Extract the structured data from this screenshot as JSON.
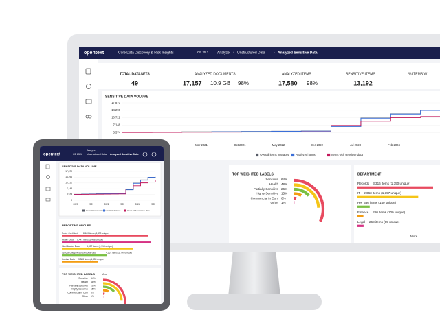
{
  "header": {
    "brand": "opentext",
    "product": "Core Data Discovery & Risk Insights",
    "version": "CE 25.1",
    "breadcrumb": [
      "Analyze",
      "Unstructured Data",
      "Analyzed Sensitive Data"
    ]
  },
  "stats": [
    {
      "label": "TOTAL DATASETS",
      "value": "49"
    },
    {
      "label": "ANALYZED DOCUMENTS",
      "value": "17,157",
      "extra": [
        "10.9 GB",
        "98%"
      ]
    },
    {
      "label": "ANALYZED ITEMS",
      "value": "17,580",
      "extra": [
        "98%"
      ]
    },
    {
      "label": "SENSITIVE ITEMS",
      "value": "13,192"
    },
    {
      "label": "% ITEMS W"
    }
  ],
  "volume_chart": {
    "type": "line",
    "title": "SENSITIVE DATA VOLUME",
    "ylim": [
      2000,
      17870
    ],
    "yticks": [
      {
        "value": 17870,
        "label": "17,870"
      },
      {
        "value": 14296,
        "label": "14,296"
      },
      {
        "value": 10722,
        "label": "10,722"
      },
      {
        "value": 7148,
        "label": "7,148"
      },
      {
        "value": 3574,
        "label": "3,574"
      }
    ],
    "xticks": [
      "Mar 2021",
      "Oct 2021",
      "May 2022",
      "Dec 2022",
      "Jul 2023",
      "Feb 2024"
    ],
    "series": [
      {
        "name": "Overall items managed",
        "color": "#555a66",
        "values": [
          3700,
          3800,
          3900,
          4000,
          4100,
          4200,
          4300,
          6600,
          10600,
          12600,
          14300,
          14500
        ]
      },
      {
        "name": "Analyzed items",
        "color": "#3b6fd8",
        "values": [
          3650,
          3750,
          3850,
          3950,
          4050,
          4150,
          4250,
          6500,
          10500,
          12500,
          14200,
          14400
        ]
      },
      {
        "name": "Items with sensitive data",
        "color": "#c2185b",
        "values": [
          3600,
          3650,
          3700,
          3750,
          3800,
          3850,
          3900,
          7000,
          9000,
          10800,
          11300,
          12600
        ]
      }
    ]
  },
  "tablet_chart": {
    "ylim": [
      0,
      17870
    ],
    "yticks": [
      {
        "value": 17870,
        "label": "17,870"
      },
      {
        "value": 14296,
        "label": "14,296"
      },
      {
        "value": 10722,
        "label": "10,722"
      },
      {
        "value": 7148,
        "label": "7,148"
      },
      {
        "value": 3574,
        "label": "3,574"
      },
      0
    ],
    "xticks": [
      "2020",
      "2021",
      "2022",
      "2023",
      "2024",
      "2025"
    ]
  },
  "labels": {
    "type": "radial_bar",
    "title": "TOP WEIGHTED LABELS",
    "link": "View",
    "categories": [
      "Sensitive",
      "Health",
      "Partially Sensitive",
      "Highly Sensitive",
      "Commercial in Conf",
      "Other"
    ],
    "values": [
      64,
      48,
      26,
      15,
      6,
      1
    ],
    "value_labels": [
      "64%",
      "48%",
      "26%",
      "15%",
      "6%",
      "1%"
    ],
    "colors": [
      "#e84a5f",
      "#f5c518",
      "#7bc043",
      "#f39c12",
      "#e84a5f",
      "#d63384"
    ]
  },
  "department": {
    "title": "DEPARTMENT",
    "link": "More",
    "rows": [
      {
        "name": "Records",
        "detail": "3,316 items (1,350 unique)",
        "items": 3316,
        "color": "#e84a5f"
      },
      {
        "name": "IT",
        "detail": "2,663 items (1,397 unique)",
        "items": 2663,
        "color": "#f5c518"
      },
      {
        "name": "HR",
        "detail": "536 items (140 unique)",
        "items": 536,
        "color": "#7bc043"
      },
      {
        "name": "Finance",
        "detail": "260 items (100 unique)",
        "items": 260,
        "color": "#f39c12"
      },
      {
        "name": "Legal",
        "detail": "268 items (85 unique)",
        "items": 268,
        "color": "#d63384"
      }
    ]
  },
  "groups": {
    "title": "REPORTING GROUPS",
    "rows": [
      {
        "name": "Policy Confident",
        "detail": "8,160 items (3,490 unique)",
        "items": 8160,
        "color": "#e84a5f"
      },
      {
        "name": "Health Data",
        "detail": "8,441 items (3,488 unique)",
        "items": 8441,
        "color": "#d63384"
      },
      {
        "name": "Identification Data",
        "detail": "6,697 items (1,918 unique)",
        "items": 6697,
        "color": "#f5c518"
      },
      {
        "name": "Special categories of personal data",
        "detail": "4,251 items (1,747 unique)",
        "items": 4251,
        "color": "#7bc043"
      },
      {
        "name": "Contact Data",
        "detail": "3,388 items (1,355 unique)",
        "items": 3388,
        "color": "#f39c12"
      }
    ]
  }
}
